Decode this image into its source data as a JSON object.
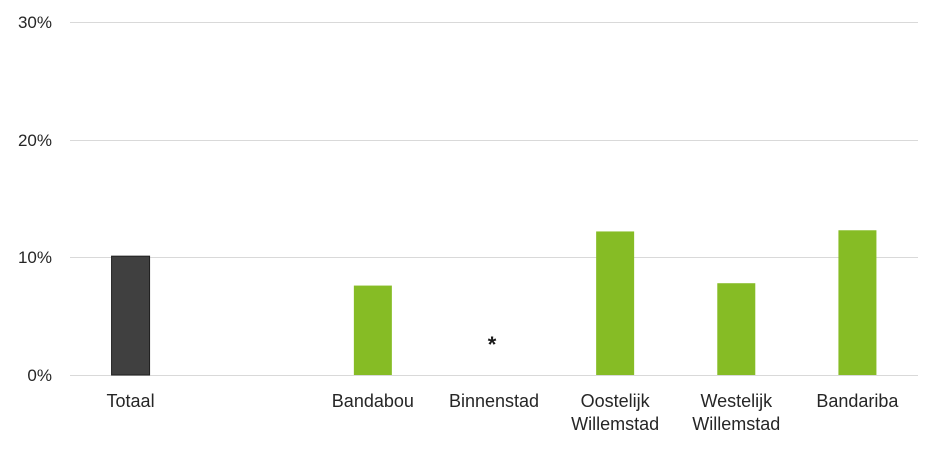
{
  "chart_data": {
    "type": "bar",
    "categories": [
      "Totaal",
      "",
      "Bandabou",
      "Binnenstad",
      "Oostelijk Willemstad",
      "Westelijk Willemstad",
      "Bandariba"
    ],
    "values": [
      10.1,
      null,
      7.6,
      null,
      12.2,
      7.8,
      12.3
    ],
    "bar_colors": [
      "#404040",
      null,
      "#86BC25",
      null,
      "#86BC25",
      "#86BC25",
      "#86BC25"
    ],
    "ylim": [
      0,
      30
    ],
    "yticks": [
      0,
      10,
      20,
      30
    ],
    "ytick_labels": [
      "0%",
      "10%",
      "20%",
      "30%"
    ],
    "grid": true,
    "gridline_color": "#D9D9D9",
    "annotations": [
      {
        "category_index": 3,
        "text": "*"
      }
    ]
  }
}
